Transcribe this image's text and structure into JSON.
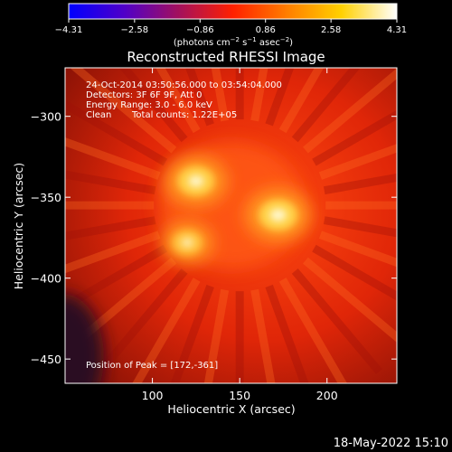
{
  "page": {
    "footer_date": "18-May-2022 15:10"
  },
  "chart_data": {
    "type": "heatmap",
    "title": "Reconstructed RHESSI Image",
    "xlabel": "Heliocentric X (arcsec)",
    "ylabel": "Heliocentric Y (arcsec)",
    "xlim": [
      50,
      240
    ],
    "ylim": [
      -465,
      -270
    ],
    "x_ticks": [
      100,
      150,
      200
    ],
    "y_ticks": [
      -300,
      -350,
      -400,
      -450
    ],
    "colorbar": {
      "range": [
        -4.31,
        4.31
      ],
      "ticks": [
        -4.31,
        -2.58,
        -0.86,
        0.86,
        2.58,
        4.31
      ],
      "tick_labels": [
        "−4.31",
        "−2.58",
        "−0.86",
        "0.86",
        "2.58",
        "4.31"
      ],
      "unit_main": "(photons cm",
      "unit_sup1": "−2",
      "unit_mid1": " s",
      "unit_sup2": "−1",
      "unit_mid2": " asec",
      "unit_sup3": "−2",
      "unit_end": ")",
      "colors": [
        "#0000ff",
        "#5000c8",
        "#a01060",
        "#ff2000",
        "#ff8000",
        "#ffd000",
        "#ffffff"
      ]
    },
    "annotations": {
      "time_range": "24-Oct-2014 03:50:56.000 to 03:54:04.000",
      "detectors": "Detectors: 3F 6F 9F, Att 0",
      "energy_range": "Energy Range: 3.0 - 6.0 keV",
      "method": "Clean",
      "counts": "Total counts: 1.22E+05",
      "peak": "Position of Peak = [172,-361]"
    },
    "sources": [
      {
        "x": 125,
        "y": -340,
        "intensity": 0.95
      },
      {
        "x": 172,
        "y": -361,
        "intensity": 1.0
      },
      {
        "x": 120,
        "y": -378,
        "intensity": 0.75
      }
    ],
    "peak": [
      172,
      -361
    ]
  }
}
